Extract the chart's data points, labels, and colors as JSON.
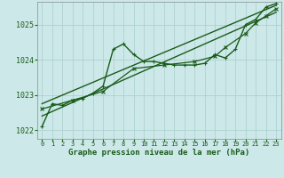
{
  "title": "Graphe pression niveau de la mer (hPa)",
  "bg_color": "#cce8e8",
  "grid_color": "#aacece",
  "line_color": "#1a5c1a",
  "xlim": [
    -0.5,
    23.5
  ],
  "ylim": [
    1021.75,
    1025.65
  ],
  "xticks": [
    0,
    1,
    2,
    3,
    4,
    5,
    6,
    7,
    8,
    9,
    10,
    11,
    12,
    13,
    14,
    15,
    16,
    17,
    18,
    19,
    20,
    21,
    22,
    23
  ],
  "yticks": [
    1022,
    1023,
    1024,
    1025
  ],
  "series": [
    {
      "x": [
        0,
        1,
        2,
        3,
        4,
        5,
        6,
        7,
        8,
        9,
        10,
        11,
        12,
        13,
        14,
        15,
        16,
        17,
        18,
        19,
        20,
        21,
        22,
        23
      ],
      "y": [
        1022.1,
        1022.75,
        1022.7,
        1022.85,
        1022.9,
        1023.05,
        1023.25,
        1024.3,
        1024.45,
        1024.15,
        1023.95,
        1023.95,
        1023.9,
        1023.85,
        1023.85,
        1023.85,
        1023.9,
        1024.15,
        1024.05,
        1024.3,
        1025.0,
        1025.15,
        1025.5,
        1025.6
      ],
      "marker": "+",
      "lw": 1.0,
      "ms": 3
    },
    {
      "x": [
        0,
        23
      ],
      "y": [
        1022.4,
        1025.35
      ],
      "marker": null,
      "lw": 1.0,
      "ms": 0
    },
    {
      "x": [
        0,
        23
      ],
      "y": [
        1022.75,
        1025.55
      ],
      "marker": null,
      "lw": 1.0,
      "ms": 0
    },
    {
      "x": [
        0,
        3,
        6,
        9,
        12,
        15,
        17,
        18,
        20,
        21,
        22,
        23
      ],
      "y": [
        1022.6,
        1022.85,
        1023.1,
        1023.75,
        1023.85,
        1023.95,
        1024.1,
        1024.35,
        1024.75,
        1025.05,
        1025.25,
        1025.45
      ],
      "marker": "x",
      "lw": 0.9,
      "ms": 3
    }
  ]
}
